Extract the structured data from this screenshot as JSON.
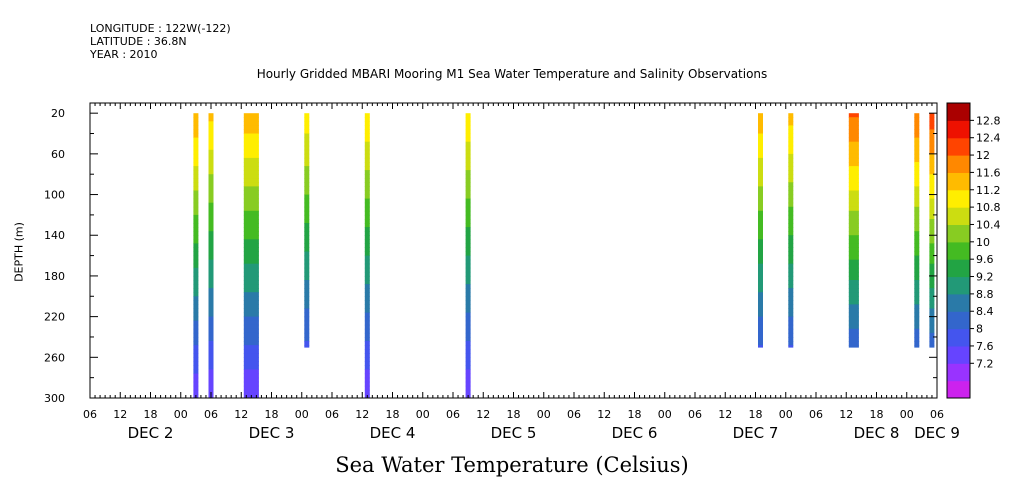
{
  "header": {
    "longitude": "LONGITUDE : 122W(-122)",
    "latitude": "LATITUDE : 36.8N",
    "year": "YEAR : 2010",
    "title": "Hourly Gridded MBARI Mooring M1 Sea Water Temperature and Salinity Observations"
  },
  "footer": {
    "variable": "Sea Water Temperature (Celsius)"
  },
  "chart_data": {
    "type": "heatmap",
    "title": "Hourly Gridded MBARI Mooring M1 Sea Water Temperature and Salinity Observations",
    "variable": "Sea Water Temperature (Celsius)",
    "ylabel": "DEPTH (m)",
    "y_inverted": true,
    "ylim": [
      300,
      10
    ],
    "y_ticks": [
      20,
      60,
      100,
      140,
      180,
      220,
      260,
      300
    ],
    "x_range_hours": [
      0,
      168
    ],
    "x_tick_labels": [
      "06",
      "12",
      "18",
      "00",
      "06",
      "12",
      "18",
      "00",
      "06",
      "12",
      "18",
      "00",
      "06",
      "12",
      "18",
      "00",
      "06",
      "12",
      "18",
      "00",
      "06",
      "12",
      "18",
      "00",
      "06",
      "12",
      "18",
      "00",
      "06"
    ],
    "x_day_labels": [
      {
        "label": "DEC  2",
        "hour": 12
      },
      {
        "label": "DEC  3",
        "hour": 36
      },
      {
        "label": "DEC  4",
        "hour": 60
      },
      {
        "label": "DEC  5",
        "hour": 84
      },
      {
        "label": "DEC  6",
        "hour": 108
      },
      {
        "label": "DEC  7",
        "hour": 132
      },
      {
        "label": "DEC  8",
        "hour": 156
      },
      {
        "label": "DEC  9",
        "hour": 168
      }
    ],
    "colorbar": {
      "levels": [
        7.2,
        7.6,
        8,
        8.4,
        8.8,
        9.2,
        9.6,
        10,
        10.4,
        10.8,
        11.2,
        11.6,
        12,
        12.4,
        12.8
      ],
      "colors": [
        "#cc22ee",
        "#9933ff",
        "#6644ff",
        "#4455ee",
        "#3366cc",
        "#2a7aa8",
        "#229977",
        "#22a444",
        "#44bb22",
        "#88cc22",
        "#ccdd11",
        "#ffee00",
        "#ffbb00",
        "#ff8800",
        "#ff4400",
        "#ee1100",
        "#aa0000"
      ],
      "labels": [
        "12.8",
        "12.4",
        "12",
        "11.6",
        "11.2",
        "10.8",
        "10.4",
        "10",
        "9.6",
        "9.2",
        "8.8",
        "8.4",
        "8",
        "7.6",
        "7.2"
      ]
    },
    "profiles": [
      {
        "start": 20.5,
        "end": 21.5,
        "bottom": 300,
        "surface_temp": 11.6
      },
      {
        "start": 23.5,
        "end": 24.5,
        "bottom": 300,
        "surface_temp": 11.3
      },
      {
        "start": 30.5,
        "end": 33.5,
        "bottom": 300,
        "surface_temp": 11.5
      },
      {
        "start": 42.5,
        "end": 43.5,
        "bottom": 250,
        "surface_temp": 11.1
      },
      {
        "start": 54.5,
        "end": 55.5,
        "bottom": 300,
        "surface_temp": 11.2
      },
      {
        "start": 74.5,
        "end": 75.5,
        "bottom": 300,
        "surface_temp": 11.2
      },
      {
        "start": 132.5,
        "end": 133.5,
        "bottom": 250,
        "surface_temp": 11.5
      },
      {
        "start": 138.5,
        "end": 139.5,
        "bottom": 250,
        "surface_temp": 11.4
      },
      {
        "start": 150.5,
        "end": 152.5,
        "bottom": 250,
        "surface_temp": 12.1
      },
      {
        "start": 163.5,
        "end": 164.5,
        "bottom": 250,
        "surface_temp": 12.0
      },
      {
        "start": 166.5,
        "end": 167.5,
        "bottom": 250,
        "surface_temp": 12.3
      }
    ]
  }
}
